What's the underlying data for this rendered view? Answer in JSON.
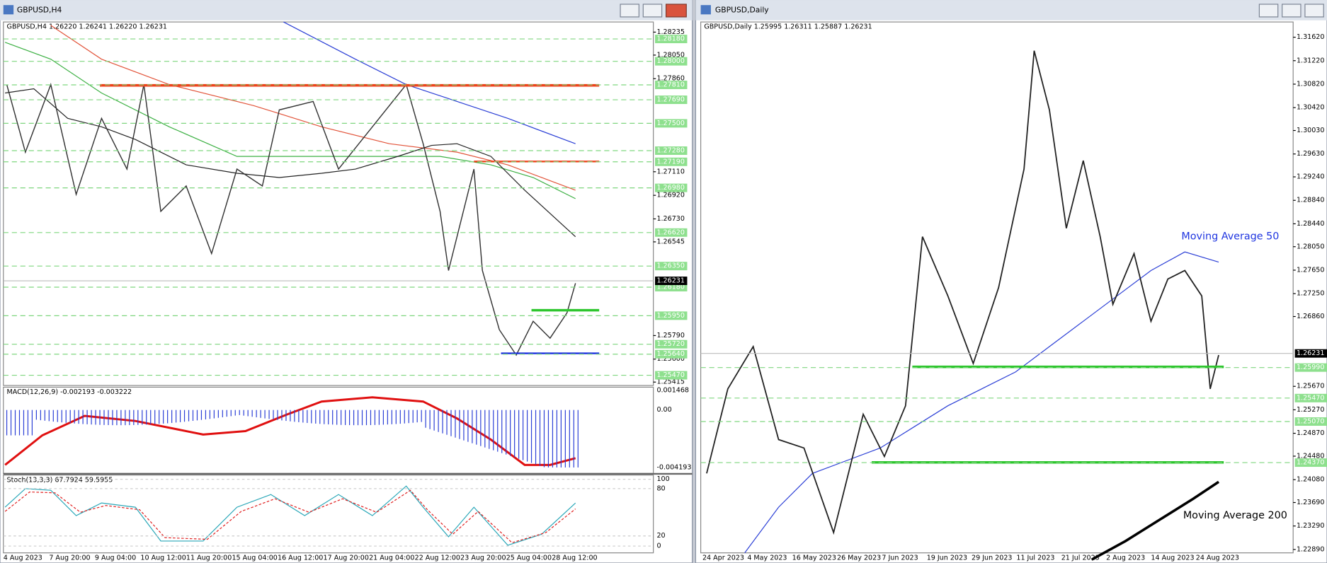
{
  "left": {
    "window_title": "GBPUSD,H4",
    "header": "GBPUSD,H4  1.26220 1.26241 1.26220 1.26231",
    "price_scale": [
      "1.28235",
      "1.28050",
      "1.27860",
      "1.27110",
      "1.26920",
      "1.26730",
      "1.26545",
      "1.25790",
      "1.25600",
      "1.25415"
    ],
    "levels": [
      "1.28180",
      "1.28000",
      "1.27810",
      "1.27690",
      "1.27500",
      "1.27280",
      "1.27190",
      "1.26980",
      "1.26620",
      "1.26350",
      "1.26180",
      "1.25950",
      "1.25720",
      "1.25640",
      "1.25470"
    ],
    "current_price": "1.26231",
    "macd_label": "MACD(12,26,9) -0.002193 -0.003222",
    "macd_scale": [
      "0.001468",
      "0.00",
      "-0.004193"
    ],
    "stoch_label": "Stoch(13,3,3) 67.7924 59.5955",
    "stoch_scale": [
      "100",
      "80",
      "20",
      "0"
    ],
    "dates": [
      "4 Aug 2023",
      "7 Aug 20:00",
      "9 Aug 04:00",
      "10 Aug 12:00",
      "11 Aug 20:00",
      "15 Aug 04:00",
      "16 Aug 12:00",
      "17 Aug 20:00",
      "21 Aug 04:00",
      "22 Aug 12:00",
      "23 Aug 20:00",
      "25 Aug 04:00",
      "28 Aug 12:00"
    ]
  },
  "right": {
    "window_title": "GBPUSD,Daily",
    "header": "GBPUSD,Daily  1.25995 1.26311 1.25887 1.26231",
    "price_scale": [
      "1.31620",
      "1.31220",
      "1.30820",
      "1.30420",
      "1.30030",
      "1.29630",
      "1.29240",
      "1.28840",
      "1.28440",
      "1.28050",
      "1.27650",
      "1.27250",
      "1.26860",
      "1.25670",
      "1.25270",
      "1.24870",
      "1.24480",
      "1.24080",
      "1.23690",
      "1.23290",
      "1.22890"
    ],
    "levels": [
      "1.25990",
      "1.25470",
      "1.25070",
      "1.24370"
    ],
    "current_price": "1.26231",
    "annotations": [
      "Moving Average 50",
      "Moving Average 200"
    ],
    "dates": [
      "24 Apr 2023",
      "4 May 2023",
      "16 May 2023",
      "26 May 2023",
      "7 Jun 2023",
      "19 Jun 2023",
      "29 Jun 2023",
      "11 Jul 2023",
      "21 Jul 2023",
      "2 Aug 2023",
      "14 Aug 2023",
      "24 Aug 2023"
    ]
  }
}
